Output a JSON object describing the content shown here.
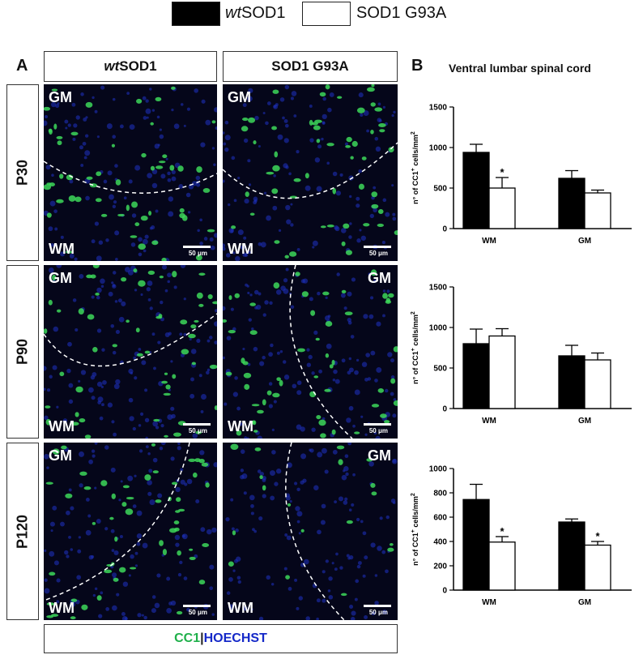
{
  "legend": {
    "wt_prefix": "wt",
    "wt_suffix": "SOD1",
    "mutant": "SOD1 G93A",
    "colors": {
      "wt": "#000000",
      "mutant": "#ffffff"
    }
  },
  "panel_a": {
    "letter": "A",
    "col_headers": {
      "wt_prefix": "wt",
      "wt_suffix": "SOD1",
      "mutant": "SOD1 G93A"
    },
    "rows": [
      {
        "label": "P30",
        "tiles": [
          {
            "top": "GM",
            "bottom": "WM",
            "top_side": "left"
          },
          {
            "top": "GM",
            "bottom": "WM",
            "top_side": "left"
          }
        ]
      },
      {
        "label": "P90",
        "tiles": [
          {
            "top": "GM",
            "bottom": "WM",
            "top_side": "left"
          },
          {
            "top": "GM",
            "bottom": "WM",
            "top_side": "right"
          }
        ]
      },
      {
        "label": "P120",
        "tiles": [
          {
            "top": "GM",
            "bottom": "WM",
            "top_side": "left"
          },
          {
            "top": "GM",
            "bottom": "WM",
            "top_side": "right"
          }
        ]
      }
    ],
    "scale_bar": "50 μm",
    "stain": {
      "cc1": "CC1",
      "sep": "|",
      "hoechst": "HOECHST",
      "cc1_color": "#1fb04a",
      "hoechst_color": "#1428c8"
    }
  },
  "panel_b": {
    "letter": "B",
    "title": "Ventral lumbar spinal cord"
  },
  "chart_data": [
    {
      "type": "bar",
      "row": "P30",
      "categories": [
        "WM",
        "GM"
      ],
      "series": [
        {
          "values": [
            940,
            620
          ],
          "errors": [
            100,
            95
          ],
          "color": "#000000"
        },
        {
          "values": [
            500,
            440
          ],
          "errors": [
            130,
            35
          ],
          "color": "#ffffff"
        }
      ],
      "significance": [
        {
          "category": "WM",
          "series": 1,
          "mark": "*"
        }
      ],
      "ylabel_prefix": "n° of CC1",
      "ylabel_sup": "+",
      "ylabel_mid": " cells/mm",
      "ylabel_sup2": "2",
      "ylim": [
        0,
        1500
      ],
      "yticks": [
        0,
        500,
        1000,
        1500
      ]
    },
    {
      "type": "bar",
      "row": "P90",
      "categories": [
        "WM",
        "GM"
      ],
      "series": [
        {
          "values": [
            800,
            650
          ],
          "errors": [
            180,
            130
          ],
          "color": "#000000"
        },
        {
          "values": [
            895,
            600
          ],
          "errors": [
            90,
            85
          ],
          "color": "#ffffff"
        }
      ],
      "significance": [],
      "ylabel_prefix": "n° of CC1",
      "ylabel_sup": "+",
      "ylabel_mid": " cells/mm",
      "ylabel_sup2": "2",
      "ylim": [
        0,
        1500
      ],
      "yticks": [
        0,
        500,
        1000,
        1500
      ]
    },
    {
      "type": "bar",
      "row": "P120",
      "categories": [
        "WM",
        "GM"
      ],
      "series": [
        {
          "values": [
            745,
            560
          ],
          "errors": [
            125,
            25
          ],
          "color": "#000000"
        },
        {
          "values": [
            395,
            370
          ],
          "errors": [
            45,
            30
          ],
          "color": "#ffffff"
        }
      ],
      "significance": [
        {
          "category": "WM",
          "series": 1,
          "mark": "*"
        },
        {
          "category": "GM",
          "series": 1,
          "mark": "*"
        }
      ],
      "ylabel_prefix": "n° of CC1",
      "ylabel_sup": "+",
      "ylabel_mid": " cells/mm",
      "ylabel_sup2": "2",
      "ylim": [
        0,
        1000
      ],
      "yticks": [
        0,
        200,
        400,
        600,
        800,
        1000
      ]
    }
  ]
}
